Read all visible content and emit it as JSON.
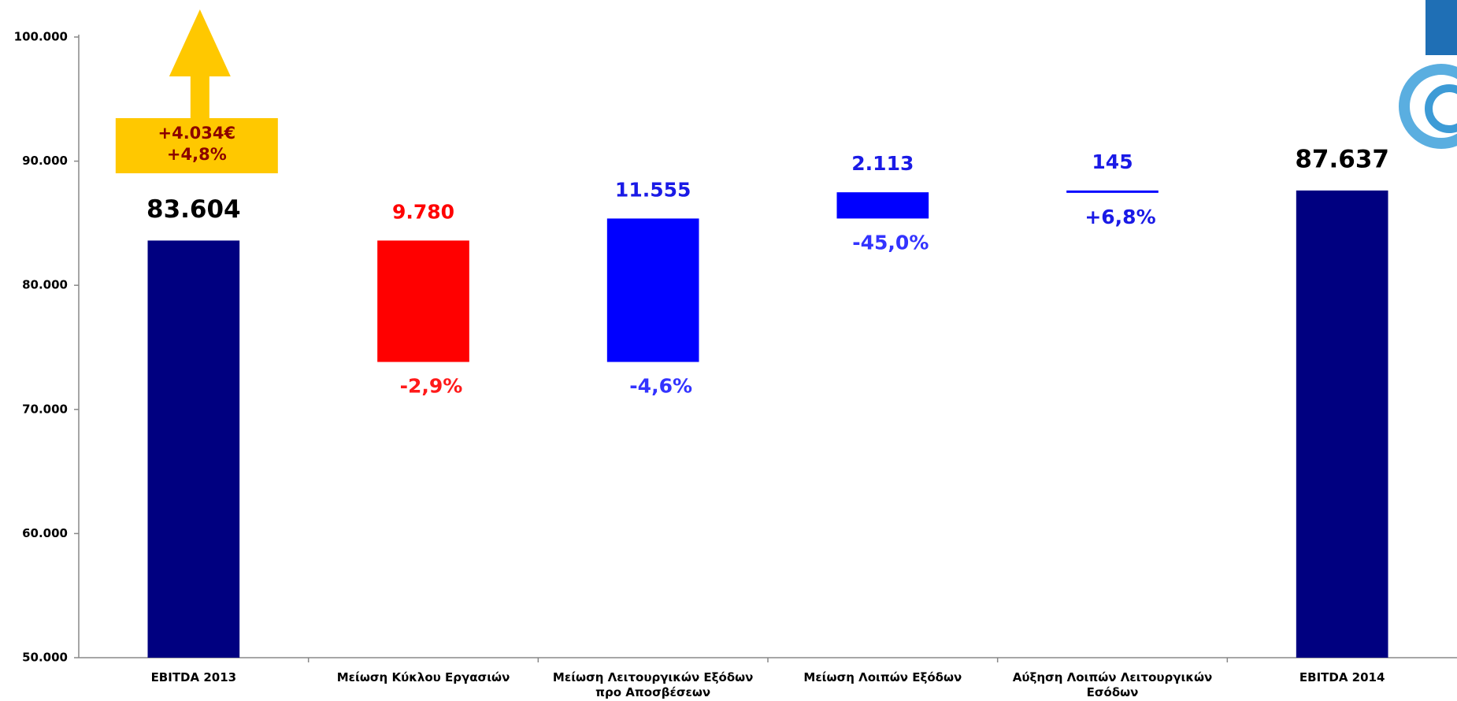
{
  "chart_data": {
    "type": "waterfall",
    "categories": [
      "EBITDA 2013",
      "Μείωση Κύκλου Εργασιών",
      "Μείωση Λειτουργικών Εξόδων\nπρο Αποσβέσεων",
      "Μείωση Λοιπών Εξόδων",
      "Αύξηση Λοιπών Λειτουργικών\nΕσόδων",
      "EBITDA 2014"
    ],
    "measure": [
      "total",
      "decrease",
      "increase",
      "increase",
      "increase",
      "total"
    ],
    "values": [
      83604,
      9780,
      11555,
      2113,
      145,
      87637
    ],
    "value_labels": [
      "83.604",
      "9.780",
      "11.555",
      "2.113",
      "145",
      "87.637"
    ],
    "change_labels": [
      null,
      "-2,9%",
      "-4,6%",
      "-45,0%",
      "+6,8%",
      null
    ],
    "colors": [
      "#000080",
      "#ff0000",
      "#0000ff",
      "#0000ff",
      "#0000ff",
      "#000080"
    ],
    "label_colors": [
      "#000000",
      "#ff0000",
      "#1a1ae6",
      "#1a1ae6",
      "#1a1ae6",
      "#000000"
    ],
    "change_label_colors": [
      null,
      "#ff1a1a",
      "#3333ff",
      "#3333ff",
      "#1a1ae6",
      null
    ],
    "annotations": [
      "+4.034€",
      "+4,8%"
    ],
    "ylim": [
      50000,
      100000
    ],
    "yticks": [
      {
        "value": 50000,
        "label": "50.000"
      },
      {
        "value": 60000,
        "label": "60.000"
      },
      {
        "value": 70000,
        "label": "70.000"
      },
      {
        "value": 80000,
        "label": "80.000"
      },
      {
        "value": 90000,
        "label": "90.000"
      },
      {
        "value": 100000,
        "label": "100.000"
      }
    ],
    "grid": false
  }
}
